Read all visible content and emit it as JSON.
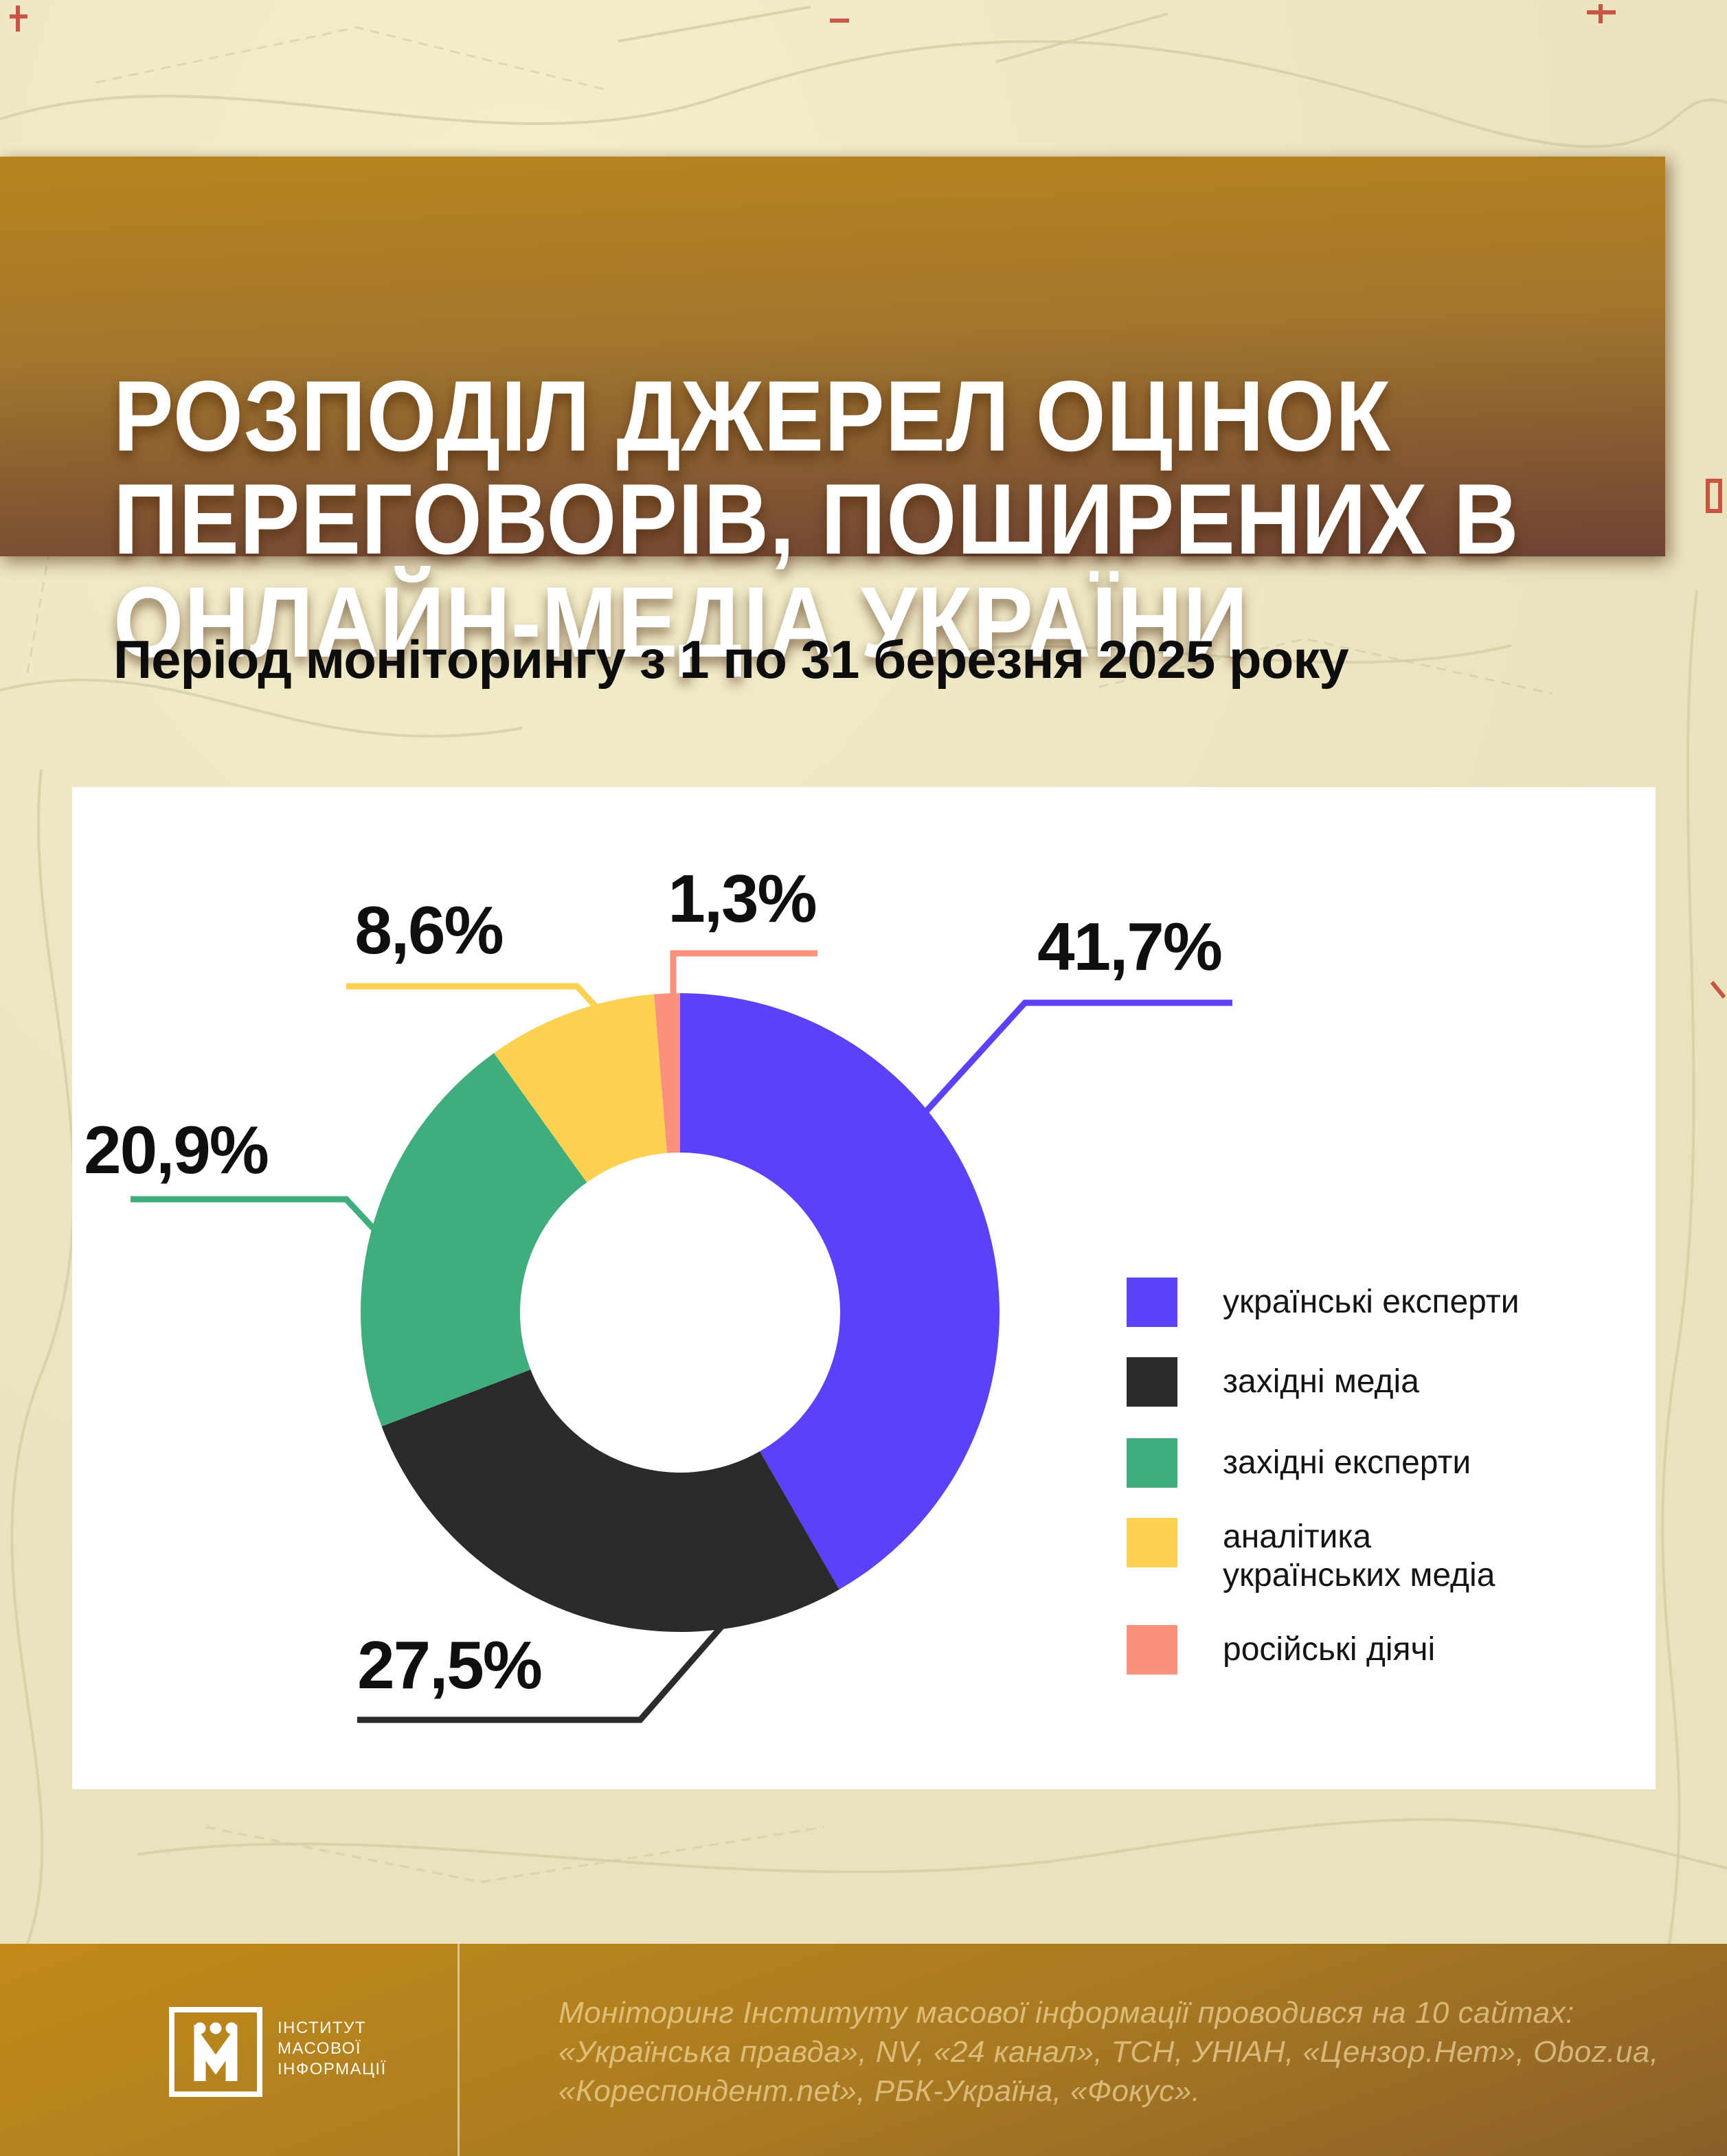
{
  "header": {
    "title_lines": [
      "РОЗПОДІЛ ДЖЕРЕЛ ОЦІНОК",
      "ПЕРЕГОВОРІВ, ПОШИРЕНИХ В",
      "ОНЛАЙН-МЕДІА УКРАЇНИ"
    ],
    "banner_gradient": [
      "#b7851d",
      "#6e4335"
    ]
  },
  "subtitle": "Період моніторингу з 1 по 31 березня 2025 року",
  "chart_data": {
    "type": "pie",
    "donut": true,
    "title": "Розподіл джерел оцінок переговорів, поширених в онлайн-медіа України",
    "subtitle": "Період моніторингу з 1 по 31 березня 2025 року",
    "unit": "%",
    "start_angle_deg": 0,
    "direction": "clockwise",
    "inner_radius_ratio": 0.5,
    "legend_position": "right",
    "series": [
      {
        "label": "українські експерти",
        "value": 41.7,
        "display": "41,7%",
        "color": "#5942f7"
      },
      {
        "label": "західні медіа",
        "value": 27.5,
        "display": "27,5%",
        "color": "#2b2b2b"
      },
      {
        "label": "західні експерти",
        "value": 20.9,
        "display": "20,9%",
        "color": "#3fad7d"
      },
      {
        "label": "аналітика українських медіа",
        "value": 8.6,
        "display": "8,6%",
        "color": "#fdd150",
        "label_lines": [
          "аналітика",
          "українських медіа"
        ]
      },
      {
        "label": "російські діячі",
        "value": 1.3,
        "display": "1,3%",
        "color": "#f9917d"
      }
    ]
  },
  "footer": {
    "logo_org_lines": [
      "ІНСТИТУТ",
      "МАСОВОЇ",
      "ІНФОРМАЦІЇ"
    ],
    "note_lines": [
      "Моніторинг Інституту масової інформації проводився на 10 сайтах:",
      "«Українська правда», NV, «24 канал», ТСН, УНІАН, «Цензор.Нет», Oboz.ua,",
      "«Кореспондент.net», РБК-Україна, «Фокус»."
    ]
  }
}
